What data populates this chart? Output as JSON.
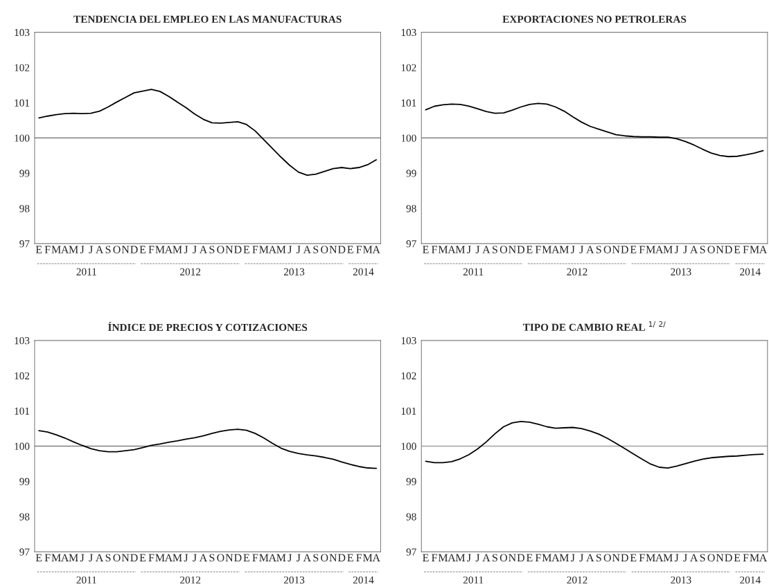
{
  "chart_data": [
    {
      "type": "line",
      "title": "TENDENCIA DEL EMPLEO EN LAS MANUFACTURAS",
      "categories": [
        "E",
        "F",
        "M",
        "A",
        "M",
        "J",
        "J",
        "A",
        "S",
        "O",
        "N",
        "D",
        "E",
        "F",
        "M",
        "A",
        "M",
        "J",
        "J",
        "A",
        "S",
        "O",
        "N",
        "D",
        "E",
        "F",
        "M",
        "A",
        "M",
        "J",
        "J",
        "A",
        "S",
        "O",
        "N",
        "D",
        "E",
        "F",
        "M",
        "A"
      ],
      "series": [
        {
          "color": "#000000",
          "values": [
            100.57,
            100.62,
            100.66,
            100.69,
            100.7,
            100.69,
            100.7,
            100.76,
            100.88,
            101.02,
            101.15,
            101.28,
            101.33,
            101.38,
            101.32,
            101.18,
            101.02,
            100.86,
            100.68,
            100.53,
            100.43,
            100.42,
            100.44,
            100.46,
            100.38,
            100.2,
            99.95,
            99.7,
            99.45,
            99.22,
            99.03,
            98.94,
            98.97,
            99.05,
            99.13,
            99.16,
            99.13,
            99.16,
            99.24,
            99.38
          ]
        }
      ],
      "ylim": [
        97,
        103
      ],
      "yticks": [
        97,
        98,
        99,
        100,
        101,
        102,
        103
      ],
      "ref_lines": [
        {
          "axis": "y",
          "value": 100,
          "color": "#808080"
        }
      ],
      "annotations": [
        "2011",
        "2012",
        "2013",
        "2014"
      ],
      "grid": false,
      "legend": false
    },
    {
      "type": "line",
      "title": "EXPORTACIONES NO PETROLERAS",
      "categories": [
        "E",
        "F",
        "M",
        "A",
        "M",
        "J",
        "J",
        "A",
        "S",
        "O",
        "N",
        "D",
        "E",
        "F",
        "M",
        "A",
        "M",
        "J",
        "J",
        "A",
        "S",
        "O",
        "N",
        "D",
        "E",
        "F",
        "M",
        "A",
        "M",
        "J",
        "J",
        "A",
        "S",
        "O",
        "N",
        "D",
        "E",
        "F",
        "M",
        "A"
      ],
      "series": [
        {
          "color": "#000000",
          "values": [
            100.8,
            100.9,
            100.94,
            100.96,
            100.95,
            100.9,
            100.83,
            100.75,
            100.7,
            100.71,
            100.79,
            100.88,
            100.95,
            100.98,
            100.96,
            100.88,
            100.76,
            100.6,
            100.45,
            100.33,
            100.25,
            100.17,
            100.09,
            100.06,
            100.04,
            100.03,
            100.03,
            100.02,
            100.02,
            99.98,
            99.9,
            99.8,
            99.68,
            99.57,
            99.5,
            99.47,
            99.48,
            99.52,
            99.57,
            99.64
          ]
        }
      ],
      "ylim": [
        97,
        103
      ],
      "yticks": [
        97,
        98,
        99,
        100,
        101,
        102,
        103
      ],
      "ref_lines": [
        {
          "axis": "y",
          "value": 100,
          "color": "#808080"
        }
      ],
      "annotations": [
        "2011",
        "2012",
        "2013",
        "2014"
      ],
      "grid": false,
      "legend": false
    },
    {
      "type": "line",
      "title": "ÍNDICE DE PRECIOS Y COTIZACIONES",
      "categories": [
        "E",
        "F",
        "M",
        "A",
        "M",
        "J",
        "J",
        "A",
        "S",
        "O",
        "N",
        "D",
        "E",
        "F",
        "M",
        "A",
        "M",
        "J",
        "J",
        "A",
        "S",
        "O",
        "N",
        "D",
        "E",
        "F",
        "M",
        "A",
        "M",
        "J",
        "J",
        "A",
        "S",
        "O",
        "N",
        "D",
        "E",
        "F",
        "M",
        "A"
      ],
      "series": [
        {
          "color": "#000000",
          "values": [
            100.44,
            100.4,
            100.32,
            100.23,
            100.12,
            100.02,
            99.93,
            99.87,
            99.84,
            99.84,
            99.87,
            99.9,
            99.96,
            100.02,
            100.06,
            100.11,
            100.15,
            100.2,
            100.24,
            100.29,
            100.36,
            100.42,
            100.46,
            100.48,
            100.45,
            100.36,
            100.23,
            100.08,
            99.94,
            99.85,
            99.79,
            99.75,
            99.72,
            99.68,
            99.63,
            99.55,
            99.48,
            99.42,
            99.38,
            99.37
          ]
        }
      ],
      "ylim": [
        97,
        103
      ],
      "yticks": [
        97,
        98,
        99,
        100,
        101,
        102,
        103
      ],
      "ref_lines": [
        {
          "axis": "y",
          "value": 100,
          "color": "#808080"
        }
      ],
      "annotations": [
        "2011",
        "2012",
        "2013",
        "2014"
      ],
      "grid": false,
      "legend": false
    },
    {
      "type": "line",
      "title": "TIPO DE CAMBIO REAL $^{1/}$ $^{2/}$",
      "categories": [
        "E",
        "F",
        "M",
        "A",
        "M",
        "J",
        "J",
        "A",
        "S",
        "O",
        "N",
        "D",
        "E",
        "F",
        "M",
        "A",
        "M",
        "J",
        "J",
        "A",
        "S",
        "O",
        "N",
        "D",
        "E",
        "F",
        "M",
        "A",
        "M",
        "J",
        "J",
        "A",
        "S",
        "O",
        "N",
        "D",
        "E",
        "F",
        "M",
        "A"
      ],
      "series": [
        {
          "color": "#000000",
          "values": [
            99.57,
            99.53,
            99.53,
            99.56,
            99.64,
            99.76,
            99.92,
            100.12,
            100.35,
            100.55,
            100.66,
            100.7,
            100.68,
            100.62,
            100.55,
            100.51,
            100.52,
            100.53,
            100.5,
            100.43,
            100.34,
            100.22,
            100.08,
            99.93,
            99.78,
            99.63,
            99.49,
            99.4,
            99.38,
            99.43,
            99.5,
            99.57,
            99.63,
            99.67,
            99.69,
            99.71,
            99.72,
            99.74,
            99.76,
            99.77
          ]
        }
      ],
      "ylim": [
        97,
        103
      ],
      "yticks": [
        97,
        98,
        99,
        100,
        101,
        102,
        103
      ],
      "ref_lines": [
        {
          "axis": "y",
          "value": 100,
          "color": "#a0a0a0"
        }
      ],
      "annotations": [
        "2011",
        "2012",
        "2013",
        "2014"
      ],
      "grid": false,
      "legend": false
    }
  ]
}
